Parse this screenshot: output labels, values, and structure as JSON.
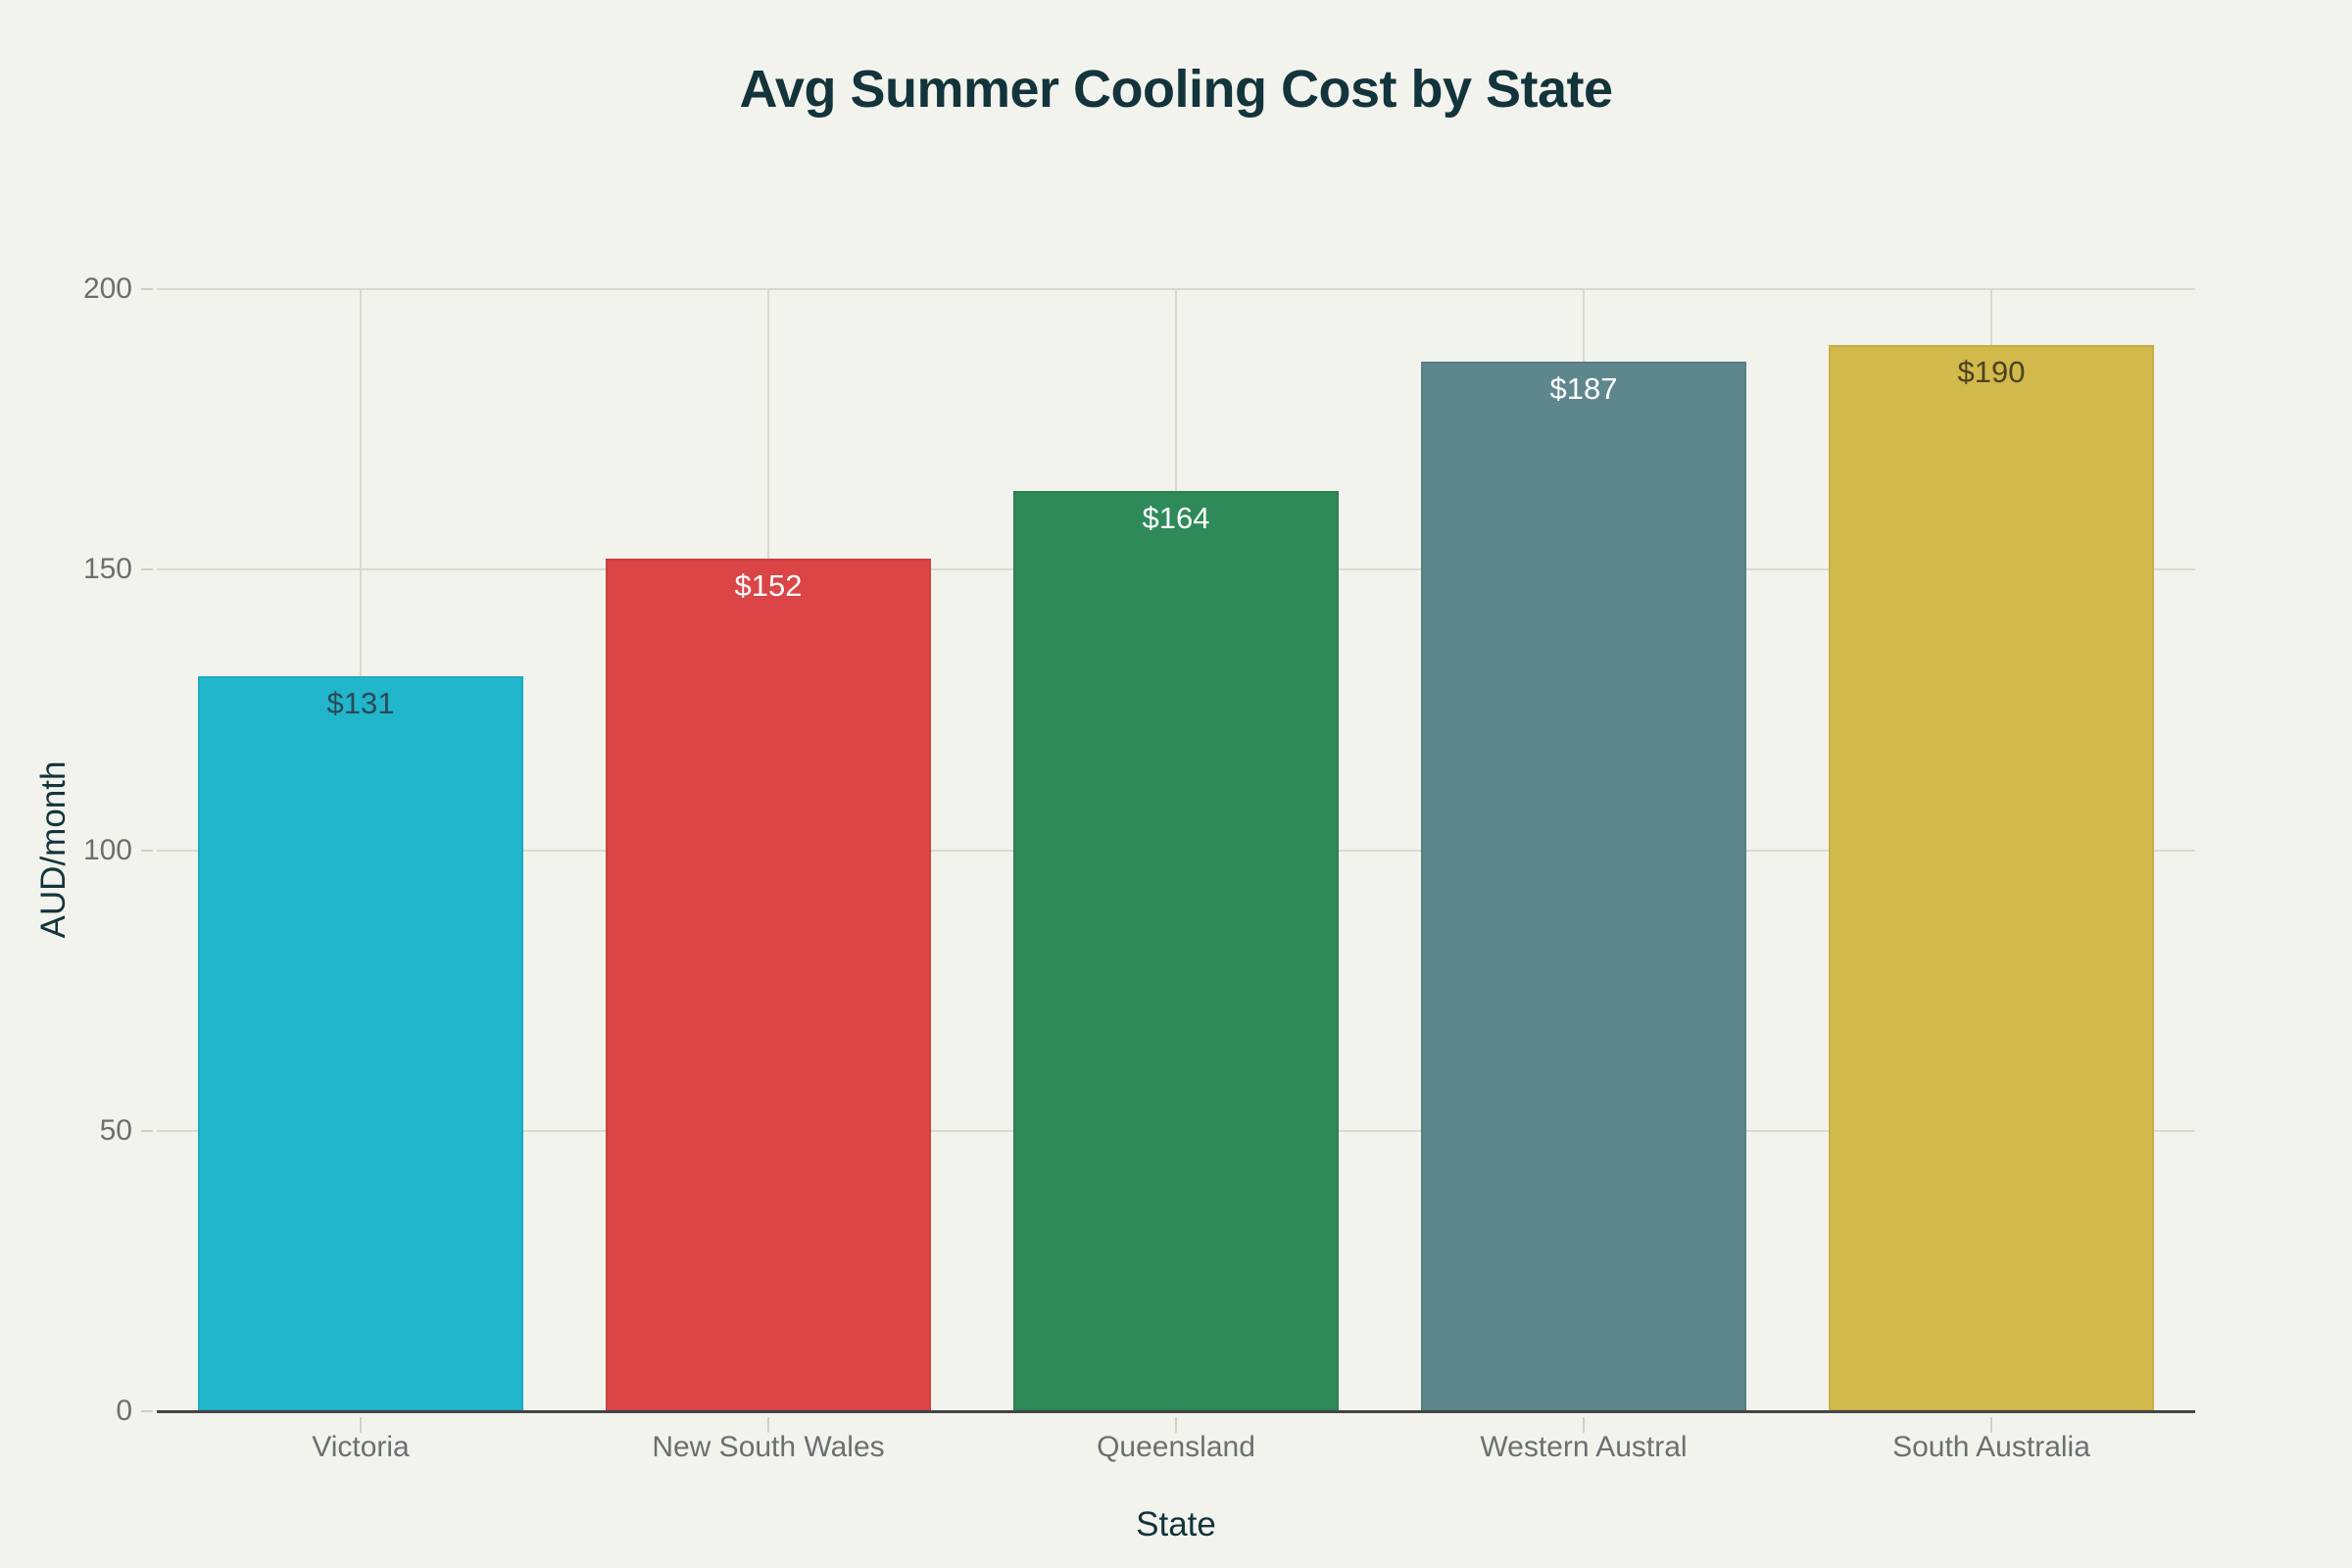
{
  "chart_data": {
    "type": "bar",
    "title": "Avg Summer Cooling Cost by State",
    "xlabel": "State",
    "ylabel": "AUD/month",
    "categories": [
      "Victoria",
      "New South Wales",
      "Queensland",
      "Western Austral",
      "South Australia"
    ],
    "values": [
      131,
      152,
      164,
      187,
      190
    ],
    "data_labels": [
      "$131",
      "$152",
      "$164",
      "$187",
      "$190"
    ],
    "colors": [
      "#21b6cc",
      "#db4546",
      "#2e8a58",
      "#5e878d",
      "#d2b94b"
    ],
    "label_colors": [
      "#2b4a55",
      "#ffffff",
      "#ffffff",
      "#ffffff",
      "#4a4320"
    ],
    "ylim": [
      0,
      200
    ],
    "yticks": [
      0,
      50,
      100,
      150,
      200
    ],
    "ytick_labels": [
      "0",
      "50",
      "100",
      "150",
      "200"
    ],
    "grid": true,
    "legend": "none"
  }
}
